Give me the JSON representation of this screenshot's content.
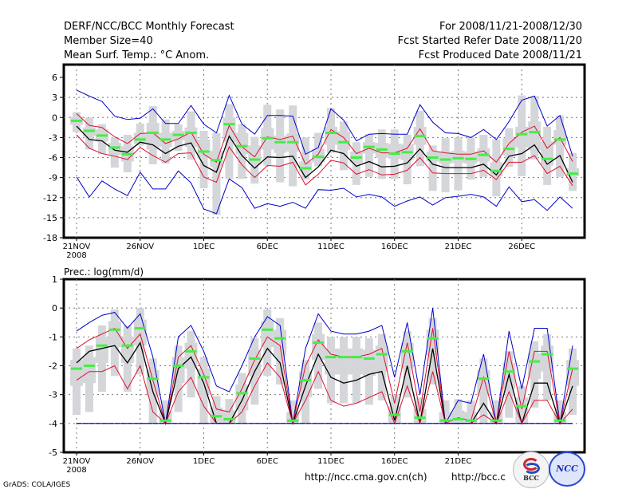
{
  "header": {
    "title": "DERF/NCC/BCC Monthly Forecast",
    "member_size": "Member Size=40",
    "variable": "Mean Surf. Temp.: °C Anom.",
    "period": "For 2008/11/21-2008/12/30",
    "start_date": "Fcst Started Refer Date 2008/11/20",
    "produced_date": "Fcst Produced Date 2008/11/21"
  },
  "footer": {
    "url_ncc": "http://ncc.cma.gov.cn(ch)",
    "url_bcc": "http://bcc.c",
    "grads_credit": "GrADS: COLA/IGES",
    "logo_bcc_label": "BCC",
    "logo_ncc_label": "NCC"
  },
  "colors": {
    "envelope": "#0000cc",
    "spread": "#e0102e",
    "mean": "#000000",
    "median": "#44ee44",
    "box": "#d4d6da",
    "grid": "#777777"
  },
  "chart_data": [
    {
      "type": "line",
      "title": "Mean Surf. Temp.: °C Anom.",
      "xlabel": "",
      "ylabel": "",
      "ylim": [
        -18,
        6
      ],
      "yticks": [
        "6",
        "3",
        "0",
        "-3",
        "-6",
        "-9",
        "-12",
        "-15",
        "-18"
      ],
      "ytick_values": [
        6,
        3,
        0,
        -3,
        -6,
        -9,
        -12,
        -15,
        -18
      ],
      "xticks": [
        {
          "day": 0,
          "label": "21NOV",
          "sub": "2008"
        },
        {
          "day": 5,
          "label": "26NOV"
        },
        {
          "day": 10,
          "label": "1DEC"
        },
        {
          "day": 15,
          "label": "6DEC"
        },
        {
          "day": 20,
          "label": "11DEC"
        },
        {
          "day": 25,
          "label": "16DEC"
        },
        {
          "day": 30,
          "label": "21DEC"
        },
        {
          "day": 35,
          "label": "26DEC"
        }
      ],
      "grid": true,
      "x_days": 40,
      "series": [
        {
          "name": "max",
          "color_key": "envelope",
          "values": [
            4.1,
            3.2,
            2.4,
            0.2,
            -0.3,
            -0.1,
            1.3,
            -0.9,
            -0.9,
            1.8,
            -1.0,
            -2.3,
            3.3,
            -1.0,
            -2.5,
            0.3,
            0.3,
            0.2,
            -5.5,
            -4.5,
            1.3,
            -0.4,
            -3.5,
            -2.5,
            -2.4,
            -2.5,
            -2.5,
            1.9,
            -0.7,
            -2.3,
            -2.4,
            -3.0,
            -1.8,
            -3.3,
            -0.6,
            2.6,
            3.2,
            -1.3,
            0.3,
            -5.8
          ]
        },
        {
          "name": "upper",
          "color_key": "spread",
          "values": [
            0.6,
            -1.2,
            -1.5,
            -2.9,
            -3.9,
            -2.4,
            -2.3,
            -3.9,
            -3.2,
            -2.2,
            -5.5,
            -6.7,
            -1.2,
            -4.4,
            -5.9,
            -2.9,
            -3.3,
            -2.8,
            -7.0,
            -5.5,
            -1.8,
            -3.0,
            -5.4,
            -4.6,
            -5.3,
            -5.3,
            -4.6,
            -1.7,
            -5.0,
            -5.3,
            -5.5,
            -5.5,
            -5.0,
            -6.7,
            -3.9,
            -2.2,
            -1.3,
            -4.6,
            -3.0,
            -6.6
          ]
        },
        {
          "name": "mean",
          "color_key": "mean",
          "values": [
            -1.3,
            -3.3,
            -3.5,
            -4.9,
            -5.2,
            -3.7,
            -4.1,
            -5.4,
            -4.3,
            -3.8,
            -7.2,
            -8.2,
            -2.8,
            -5.7,
            -7.6,
            -5.9,
            -6.0,
            -5.8,
            -9.0,
            -7.4,
            -4.9,
            -5.4,
            -7.3,
            -6.6,
            -7.4,
            -7.3,
            -6.8,
            -4.7,
            -7.0,
            -7.5,
            -7.5,
            -7.5,
            -7.0,
            -8.6,
            -5.8,
            -5.4,
            -4.1,
            -7.0,
            -5.7,
            -9.7
          ]
        },
        {
          "name": "lower",
          "color_key": "spread",
          "values": [
            -2.6,
            -4.6,
            -5.4,
            -5.8,
            -6.3,
            -4.5,
            -5.7,
            -6.7,
            -5.4,
            -5.3,
            -8.9,
            -9.7,
            -4.4,
            -7.1,
            -9.0,
            -7.2,
            -7.3,
            -6.7,
            -10.1,
            -8.5,
            -6.4,
            -6.8,
            -8.5,
            -7.8,
            -8.6,
            -8.5,
            -7.9,
            -6.0,
            -8.3,
            -8.4,
            -8.4,
            -8.4,
            -7.9,
            -9.3,
            -6.7,
            -6.7,
            -5.7,
            -8.4,
            -7.3,
            -10.2
          ]
        },
        {
          "name": "min",
          "color_key": "envelope",
          "values": [
            -8.9,
            -11.9,
            -9.5,
            -10.7,
            -11.7,
            -8.2,
            -10.7,
            -10.7,
            -8.0,
            -9.8,
            -13.7,
            -14.4,
            -9.2,
            -10.5,
            -13.6,
            -12.9,
            -13.3,
            -12.7,
            -13.6,
            -10.8,
            -10.9,
            -10.6,
            -11.9,
            -11.5,
            -11.9,
            -13.3,
            -12.5,
            -11.9,
            -13.1,
            -12.0,
            -11.8,
            -11.5,
            -11.9,
            -13.3,
            -10.4,
            -12.6,
            -12.3,
            -13.9,
            -11.9,
            -13.6
          ]
        }
      ],
      "medians": [
        -0.5,
        -2.0,
        -2.7,
        -4.5,
        -5.5,
        -3.3,
        -2.3,
        -3.3,
        -2.6,
        -2.3,
        -5.1,
        -6.4,
        -1.0,
        -4.3,
        -6.3,
        -3.1,
        -3.7,
        -3.7,
        -7.6,
        -5.9,
        -2.3,
        -3.7,
        -6.0,
        -4.4,
        -4.8,
        -5.4,
        -5.2,
        -2.8,
        -6.0,
        -6.3,
        -6.1,
        -6.2,
        -5.6,
        -8.0,
        -4.7,
        -2.5,
        -2.2,
        -6.2,
        -3.3,
        -8.4
      ],
      "box_ranges": [
        [
          -2.2,
          0.8
        ],
        [
          -4.8,
          0.0
        ],
        [
          -5.5,
          -1.0
        ],
        [
          -7.5,
          -3.0
        ],
        [
          -8.2,
          -2.6
        ],
        [
          -4.2,
          -0.9
        ],
        [
          -7.0,
          1.7
        ],
        [
          -6.9,
          -0.3
        ],
        [
          -5.0,
          -1.0
        ],
        [
          -6.3,
          0.9
        ],
        [
          -10.6,
          -2.0
        ],
        [
          -14.6,
          -2.3
        ],
        [
          -9.2,
          2.0
        ],
        [
          -9.2,
          -1.0
        ],
        [
          -9.9,
          -2.9
        ],
        [
          -7.2,
          1.9
        ],
        [
          -9.7,
          1.2
        ],
        [
          -10.3,
          1.8
        ],
        [
          -9.3,
          -3.0
        ],
        [
          -7.3,
          -2.3
        ],
        [
          -5.3,
          1.4
        ],
        [
          -7.9,
          -0.6
        ],
        [
          -10.1,
          -3.7
        ],
        [
          -8.9,
          -2.5
        ],
        [
          -9.2,
          -1.8
        ],
        [
          -9.2,
          -1.8
        ],
        [
          -10.0,
          -2.6
        ],
        [
          -7.3,
          1.0
        ],
        [
          -11.0,
          -4.2
        ],
        [
          -11.2,
          -3.1
        ],
        [
          -10.9,
          -3.0
        ],
        [
          -9.3,
          -3.0
        ],
        [
          -8.9,
          -2.6
        ],
        [
          -11.8,
          -3.3
        ],
        [
          -7.4,
          -1.6
        ],
        [
          -8.8,
          3.3
        ],
        [
          -6.3,
          3.2
        ],
        [
          -10.1,
          -1.4
        ],
        [
          -8.9,
          0.3
        ],
        [
          -11.0,
          -5.3
        ]
      ],
      "box_iqr": [
        [
          -1.1,
          0.1
        ],
        [
          -2.8,
          -1.5
        ],
        [
          -3.6,
          -1.8
        ],
        [
          -5.6,
          -3.8
        ],
        [
          -6.6,
          -4.3
        ],
        [
          -4.0,
          -2.3
        ],
        [
          -4.8,
          -0.8
        ],
        [
          -4.4,
          -2.3
        ],
        [
          -3.4,
          -2.0
        ],
        [
          -4.4,
          -1.5
        ],
        [
          -6.1,
          -3.3
        ],
        [
          -7.4,
          -5.0
        ],
        [
          -3.7,
          0.0
        ],
        [
          -5.5,
          -2.3
        ],
        [
          -7.1,
          -4.2
        ],
        [
          -4.8,
          -1.6
        ],
        [
          -5.3,
          -2.7
        ],
        [
          -5.1,
          -2.4
        ],
        [
          -8.1,
          -6.6
        ],
        [
          -6.7,
          -4.7
        ],
        [
          -4.1,
          -1.4
        ],
        [
          -4.9,
          -2.1
        ],
        [
          -6.8,
          -5.1
        ],
        [
          -5.4,
          -3.7
        ],
        [
          -6.0,
          -3.8
        ],
        [
          -6.2,
          -3.9
        ],
        [
          -6.4,
          -4.0
        ],
        [
          -4.1,
          -1.4
        ],
        [
          -6.6,
          -5.1
        ],
        [
          -6.9,
          -5.1
        ],
        [
          -6.8,
          -5.0
        ],
        [
          -6.9,
          -5.1
        ],
        [
          -6.6,
          -4.6
        ],
        [
          -8.8,
          -6.7
        ],
        [
          -5.7,
          -3.1
        ],
        [
          -4.5,
          -1.4
        ],
        [
          -4.9,
          -0.6
        ],
        [
          -7.2,
          -3.6
        ],
        [
          -4.1,
          -1.9
        ],
        [
          -8.8,
          -7.6
        ]
      ]
    },
    {
      "type": "line",
      "title": "Prec.: log(mm/d)",
      "xlabel": "",
      "ylabel": "",
      "ylim": [
        -5,
        1
      ],
      "yticks": [
        "1",
        "0",
        "-1",
        "-2",
        "-3",
        "-4",
        "-5"
      ],
      "ytick_values": [
        1,
        0,
        -1,
        -2,
        -3,
        -4,
        -5
      ],
      "xticks": [
        {
          "day": 0,
          "label": "21NOV",
          "sub": "2008"
        },
        {
          "day": 5,
          "label": "26NOV"
        },
        {
          "day": 10,
          "label": "1DEC"
        },
        {
          "day": 15,
          "label": "6DEC"
        },
        {
          "day": 20,
          "label": "11DEC"
        },
        {
          "day": 25,
          "label": "16DEC"
        },
        {
          "day": 30,
          "label": "21DEC"
        }
      ],
      "grid": true,
      "x_days": 40,
      "series": [
        {
          "name": "max",
          "color_key": "envelope",
          "values": [
            -0.8,
            -0.5,
            -0.25,
            -0.15,
            -0.7,
            -0.2,
            -1.7,
            -4.0,
            -1.0,
            -0.6,
            -1.5,
            -2.7,
            -2.9,
            -2.0,
            -1.0,
            -0.3,
            -0.6,
            -4.0,
            -1.4,
            -0.2,
            -0.8,
            -0.9,
            -0.9,
            -0.8,
            -0.6,
            -2.4,
            -0.5,
            -3.0,
            0.0,
            -4.0,
            -3.2,
            -3.3,
            -1.6,
            -4.0,
            -0.8,
            -2.8,
            -0.7,
            -0.7,
            -4.0,
            -1.3
          ]
        },
        {
          "name": "upper",
          "color_key": "spread",
          "values": [
            -1.4,
            -1.1,
            -0.9,
            -0.7,
            -1.4,
            -0.9,
            -2.5,
            -4.0,
            -1.7,
            -1.3,
            -2.3,
            -3.5,
            -3.6,
            -2.8,
            -1.8,
            -1.0,
            -1.3,
            -4.0,
            -2.0,
            -1.1,
            -1.6,
            -1.7,
            -1.7,
            -1.6,
            -1.4,
            -3.3,
            -1.2,
            -3.6,
            -0.7,
            -4.0,
            -3.8,
            -3.9,
            -2.4,
            -4.0,
            -1.5,
            -3.5,
            -1.5,
            -1.5,
            -4.0,
            -2.1
          ]
        },
        {
          "name": "mean",
          "color_key": "mean",
          "values": [
            -1.9,
            -1.5,
            -1.4,
            -1.3,
            -1.9,
            -1.2,
            -2.9,
            -4.0,
            -2.1,
            -1.7,
            -2.6,
            -4.0,
            -4.0,
            -3.2,
            -2.2,
            -1.4,
            -1.9,
            -4.0,
            -2.7,
            -1.6,
            -2.4,
            -2.6,
            -2.5,
            -2.3,
            -2.2,
            -3.9,
            -2.0,
            -4.0,
            -1.4,
            -4.0,
            -4.0,
            -4.0,
            -3.3,
            -4.0,
            -2.3,
            -4.0,
            -2.6,
            -2.6,
            -4.0,
            -2.7
          ]
        },
        {
          "name": "lower",
          "color_key": "spread",
          "values": [
            -2.5,
            -2.2,
            -2.2,
            -2.0,
            -2.8,
            -2.0,
            -3.6,
            -4.0,
            -2.9,
            -2.4,
            -3.4,
            -4.0,
            -4.0,
            -3.6,
            -2.7,
            -1.9,
            -2.4,
            -4.0,
            -3.2,
            -2.2,
            -3.2,
            -3.4,
            -3.3,
            -3.1,
            -2.9,
            -4.0,
            -2.7,
            -4.0,
            -2.2,
            -4.0,
            -4.0,
            -4.0,
            -3.7,
            -4.0,
            -2.9,
            -4.0,
            -3.2,
            -3.2,
            -4.0,
            -3.5
          ]
        },
        {
          "name": "min",
          "color_key": "envelope",
          "values": [
            -4.0,
            -4.0,
            -4.0,
            -4.0,
            -4.0,
            -4.0,
            -4.0,
            -4.0,
            -4.0,
            -4.0,
            -4.0,
            -4.0,
            -4.0,
            -4.0,
            -4.0,
            -4.0,
            -4.0,
            -4.0,
            -4.0,
            -4.0,
            -4.0,
            -4.0,
            -4.0,
            -4.0,
            -4.0,
            -4.0,
            -4.0,
            -4.0,
            -4.0,
            -4.0,
            -4.0,
            -4.0,
            -4.0,
            -4.0,
            -4.0,
            -4.0,
            -4.0,
            -4.0,
            -4.0,
            -4.0
          ]
        }
      ],
      "medians": [
        -2.1,
        -2.0,
        -1.3,
        -0.75,
        -1.3,
        -0.7,
        -2.45,
        -3.9,
        -2.0,
        -1.5,
        -2.4,
        -3.75,
        -3.85,
        -2.95,
        -1.75,
        -0.75,
        -1.05,
        -3.9,
        -2.5,
        -1.2,
        -1.7,
        -1.7,
        -1.7,
        -1.75,
        -1.6,
        -3.7,
        -1.5,
        -3.8,
        -1.05,
        -3.9,
        -3.85,
        -3.9,
        -2.45,
        -3.9,
        -2.2,
        -3.4,
        -1.85,
        -1.6,
        -3.9,
        -2.1
      ]
    }
  ]
}
